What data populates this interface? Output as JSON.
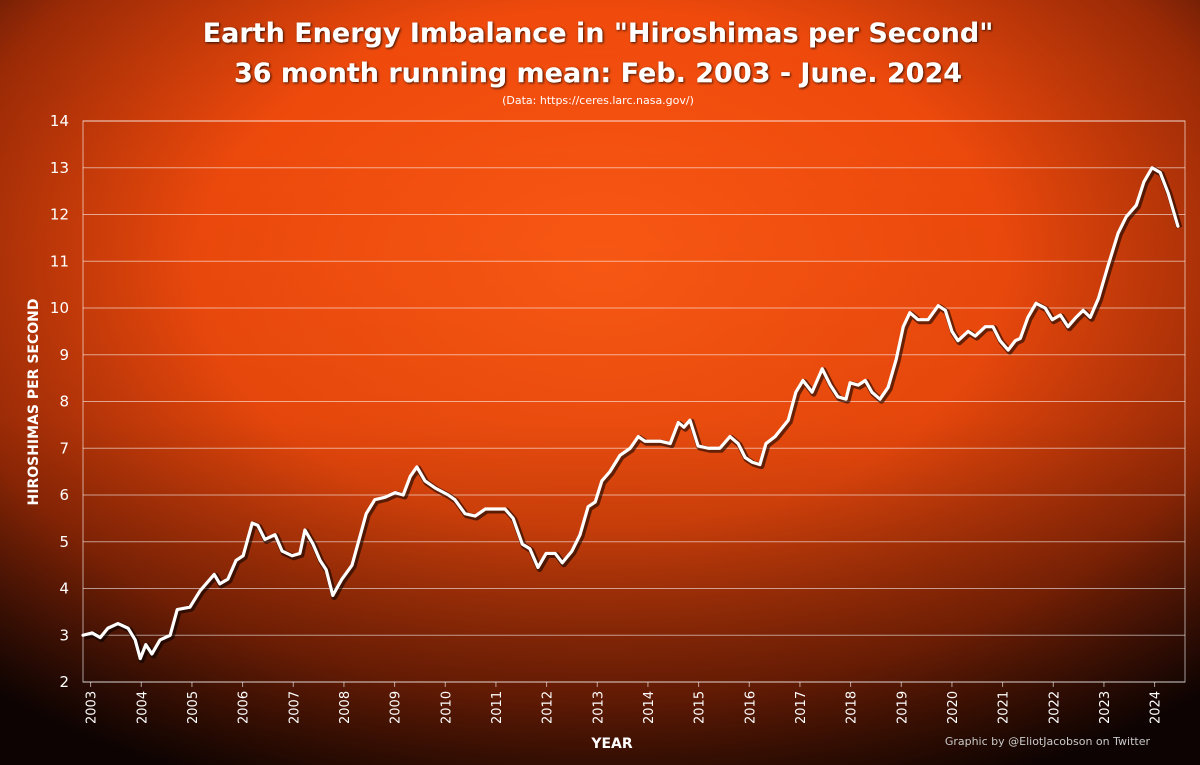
{
  "chart_data": {
    "type": "line",
    "title": "Earth Energy Imbalance in \"Hiroshimas per Second\"",
    "subtitle": "36 month running mean: Feb. 2003 - June. 2024",
    "source": "(Data: https://ceres.larc.nasa.gov/)",
    "x_label": "YEAR",
    "y_label": "HIROSHIMAS PER SECOND",
    "credit": "Graphic by @EliotJacobson on Twitter",
    "xlim": [
      2002.85,
      2024.6
    ],
    "xticks": [
      2003,
      2004,
      2005,
      2006,
      2007,
      2008,
      2009,
      2010,
      2011,
      2012,
      2013,
      2014,
      2015,
      2016,
      2017,
      2018,
      2019,
      2020,
      2021,
      2022,
      2023,
      2024
    ],
    "ylim": [
      2,
      14
    ],
    "yticks": [
      2,
      3,
      4,
      5,
      6,
      7,
      8,
      9,
      10,
      11,
      12,
      13,
      14
    ],
    "grid": true,
    "x": [
      2002.85,
      2003.03,
      2003.19,
      2003.34,
      2003.54,
      2003.74,
      2003.88,
      2003.98,
      2004.09,
      2004.21,
      2004.37,
      2004.57,
      2004.71,
      2004.96,
      2005.16,
      2005.44,
      2005.55,
      2005.71,
      2005.87,
      2006.01,
      2006.19,
      2006.3,
      2006.44,
      2006.64,
      2006.78,
      2006.98,
      2007.13,
      2007.23,
      2007.39,
      2007.53,
      2007.65,
      2007.78,
      2007.96,
      2008.16,
      2008.44,
      2008.61,
      2008.81,
      2009.01,
      2009.17,
      2009.31,
      2009.44,
      2009.6,
      2009.8,
      2010.06,
      2010.19,
      2010.39,
      2010.59,
      2010.79,
      2010.98,
      2011.18,
      2011.34,
      2011.52,
      2011.67,
      2011.83,
      2011.99,
      2012.17,
      2012.31,
      2012.5,
      2012.66,
      2012.82,
      2012.96,
      2013.09,
      2013.25,
      2013.45,
      2013.65,
      2013.81,
      2013.94,
      2014.24,
      2014.44,
      2014.6,
      2014.71,
      2014.83,
      2014.99,
      2015.19,
      2015.42,
      2015.62,
      2015.78,
      2015.92,
      2016.06,
      2016.21,
      2016.33,
      2016.51,
      2016.77,
      2016.92,
      2017.06,
      2017.24,
      2017.44,
      2017.6,
      2017.75,
      2017.91,
      2017.99,
      2018.15,
      2018.29,
      2018.42,
      2018.58,
      2018.74,
      2018.9,
      2019.04,
      2019.17,
      2019.33,
      2019.53,
      2019.73,
      2019.87,
      2020.0,
      2020.12,
      2020.32,
      2020.46,
      2020.66,
      2020.81,
      2020.95,
      2021.11,
      2021.25,
      2021.35,
      2021.5,
      2021.66,
      2021.84,
      2021.98,
      2022.14,
      2022.29,
      2022.45,
      2022.59,
      2022.73,
      2022.89,
      2023.08,
      2023.28,
      2023.44,
      2023.64,
      2023.79,
      2023.95,
      2024.11,
      2024.27,
      2024.46
    ],
    "series": [
      {
        "color": "#ffffff",
        "values": [
          3.0,
          3.05,
          2.95,
          3.15,
          3.25,
          3.15,
          2.9,
          2.5,
          2.8,
          2.6,
          2.9,
          3.0,
          3.55,
          3.6,
          3.95,
          4.3,
          4.1,
          4.2,
          4.6,
          4.7,
          5.4,
          5.35,
          5.05,
          5.15,
          4.8,
          4.7,
          4.75,
          5.25,
          4.95,
          4.6,
          4.4,
          3.85,
          4.2,
          4.5,
          5.6,
          5.9,
          5.95,
          6.05,
          6.0,
          6.4,
          6.6,
          6.3,
          6.15,
          6.0,
          5.9,
          5.6,
          5.55,
          5.7,
          5.7,
          5.7,
          5.5,
          4.95,
          4.85,
          4.45,
          4.75,
          4.75,
          4.55,
          4.8,
          5.15,
          5.75,
          5.85,
          6.3,
          6.5,
          6.85,
          7.0,
          7.25,
          7.15,
          7.15,
          7.1,
          7.55,
          7.45,
          7.6,
          7.05,
          7.0,
          7.0,
          7.25,
          7.1,
          6.8,
          6.7,
          6.65,
          7.1,
          7.25,
          7.6,
          8.2,
          8.45,
          8.2,
          8.7,
          8.35,
          8.1,
          8.05,
          8.4,
          8.35,
          8.45,
          8.2,
          8.05,
          8.3,
          8.9,
          9.6,
          9.9,
          9.75,
          9.75,
          10.05,
          9.95,
          9.5,
          9.3,
          9.5,
          9.4,
          9.6,
          9.6,
          9.3,
          9.1,
          9.3,
          9.35,
          9.8,
          10.1,
          10.0,
          9.75,
          9.85,
          9.6,
          9.8,
          9.95,
          9.8,
          10.2,
          10.9,
          11.6,
          11.95,
          12.2,
          12.7,
          13.0,
          12.9,
          12.45,
          11.75
        ]
      }
    ]
  }
}
